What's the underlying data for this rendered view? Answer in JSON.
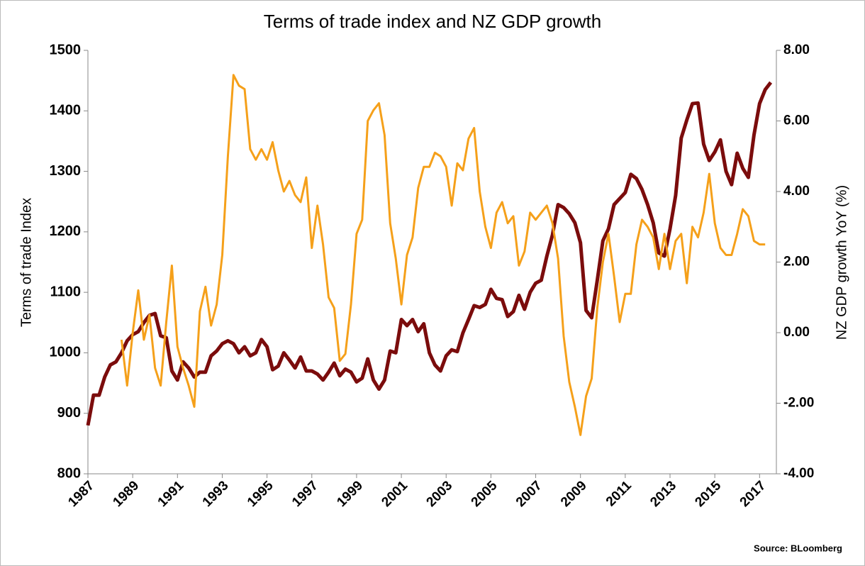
{
  "chart_data": {
    "type": "line",
    "title": "Terms of trade index and NZ GDP growth",
    "ylabel": "Terms of trade Index",
    "y2label": "NZ GDP growth YoY (%)",
    "source": "Source: BLoomberg",
    "xlim": [
      1987,
      2017.75
    ],
    "xticks": [
      1987,
      1989,
      1991,
      1993,
      1995,
      1997,
      1999,
      2001,
      2003,
      2005,
      2007,
      2009,
      2011,
      2013,
      2015,
      2017
    ],
    "ylim": [
      800,
      1500
    ],
    "yticks": [
      800,
      900,
      1000,
      1100,
      1200,
      1300,
      1400,
      1500
    ],
    "y2lim": [
      -4,
      8
    ],
    "y2ticks": [
      {
        "value": -4,
        "label": "-4.00"
      },
      {
        "value": -2,
        "label": "-2.00"
      },
      {
        "value": 0,
        "label": "0.00"
      },
      {
        "value": 2,
        "label": "2.00"
      },
      {
        "value": 4,
        "label": "4.00"
      },
      {
        "value": 6,
        "label": "6.00"
      },
      {
        "value": 8,
        "label": "8.00"
      }
    ],
    "x": [
      1987,
      1987.25,
      1987.5,
      1987.75,
      1988,
      1988.25,
      1988.5,
      1988.75,
      1989,
      1989.25,
      1989.5,
      1989.75,
      1990,
      1990.25,
      1990.5,
      1990.75,
      1991,
      1991.25,
      1991.5,
      1991.75,
      1992,
      1992.25,
      1992.5,
      1992.75,
      1993,
      1993.25,
      1993.5,
      1993.75,
      1994,
      1994.25,
      1994.5,
      1994.75,
      1995,
      1995.25,
      1995.5,
      1995.75,
      1996,
      1996.25,
      1996.5,
      1996.75,
      1997,
      1997.25,
      1997.5,
      1997.75,
      1998,
      1998.25,
      1998.5,
      1998.75,
      1999,
      1999.25,
      1999.5,
      1999.75,
      2000,
      2000.25,
      2000.5,
      2000.75,
      2001,
      2001.25,
      2001.5,
      2001.75,
      2002,
      2002.25,
      2002.5,
      2002.75,
      2003,
      2003.25,
      2003.5,
      2003.75,
      2004,
      2004.25,
      2004.5,
      2004.75,
      2005,
      2005.25,
      2005.5,
      2005.75,
      2006,
      2006.25,
      2006.5,
      2006.75,
      2007,
      2007.25,
      2007.5,
      2007.75,
      2008,
      2008.25,
      2008.5,
      2008.75,
      2009,
      2009.25,
      2009.5,
      2009.75,
      2010,
      2010.25,
      2010.5,
      2010.75,
      2011,
      2011.25,
      2011.5,
      2011.75,
      2012,
      2012.25,
      2012.5,
      2012.75,
      2013,
      2013.25,
      2013.5,
      2013.75,
      2014,
      2014.25,
      2014.5,
      2014.75,
      2015,
      2015.25,
      2015.5,
      2015.75,
      2016,
      2016.25,
      2016.5,
      2016.75,
      2017,
      2017.25,
      2017.5
    ],
    "series": [
      {
        "name": "Terms of trade index",
        "color": "#7b0c0c",
        "width": 5,
        "values": [
          880,
          930,
          930,
          960,
          980,
          985,
          1000,
          1020,
          1030,
          1035,
          1050,
          1062,
          1065,
          1028,
          1025,
          970,
          955,
          985,
          975,
          960,
          968,
          968,
          995,
          1003,
          1015,
          1020,
          1015,
          1000,
          1010,
          995,
          1000,
          1022,
          1010,
          972,
          978,
          1000,
          988,
          975,
          993,
          970,
          970,
          965,
          955,
          968,
          983,
          962,
          973,
          968,
          952,
          958,
          990,
          955,
          940,
          955,
          1003,
          1000,
          1055,
          1045,
          1055,
          1035,
          1048,
          1000,
          980,
          970,
          995,
          1005,
          1002,
          1033,
          1055,
          1078,
          1075,
          1080,
          1105,
          1090,
          1088,
          1060,
          1068,
          1095,
          1072,
          1100,
          1115,
          1120,
          1160,
          1195,
          1245,
          1240,
          1230,
          1215,
          1182,
          1070,
          1058,
          1120,
          1185,
          1205,
          1245,
          1255,
          1265,
          1295,
          1288,
          1270,
          1245,
          1215,
          1165,
          1160,
          1205,
          1260,
          1355,
          1385,
          1412,
          1413,
          1345,
          1318,
          1332,
          1352,
          1300,
          1278,
          1330,
          1305,
          1290,
          1360,
          1412,
          1435,
          1447
        ]
      },
      {
        "name": "NZ GDP growth YoY",
        "color": "#f5a01a",
        "width": 3,
        "axis": "y2",
        "values": [
          null,
          null,
          null,
          null,
          null,
          null,
          -0.2,
          -1.5,
          0.0,
          1.2,
          -0.2,
          0.5,
          -1.0,
          -1.5,
          0.3,
          1.9,
          -0.4,
          -1.0,
          -1.5,
          -2.1,
          0.6,
          1.3,
          0.2,
          0.8,
          2.2,
          5.0,
          7.3,
          7.0,
          6.9,
          5.2,
          4.9,
          5.2,
          4.9,
          5.4,
          4.6,
          4.0,
          4.3,
          3.9,
          3.7,
          4.4,
          2.4,
          3.6,
          2.5,
          1.0,
          0.7,
          -0.8,
          -0.6,
          0.8,
          2.8,
          3.2,
          6.0,
          6.3,
          6.5,
          5.6,
          3.1,
          2.1,
          0.8,
          2.2,
          2.7,
          4.1,
          4.7,
          4.7,
          5.1,
          5.0,
          4.7,
          3.6,
          4.8,
          4.6,
          5.5,
          5.8,
          4.0,
          3.0,
          2.4,
          3.4,
          3.7,
          3.1,
          3.3,
          1.9,
          2.3,
          3.4,
          3.2,
          3.4,
          3.6,
          3.1,
          2.1,
          -0.1,
          -1.4,
          -2.1,
          -2.9,
          -1.8,
          -1.3,
          0.7,
          2.0,
          2.8,
          1.6,
          0.3,
          1.1,
          1.1,
          2.5,
          3.2,
          3.0,
          2.7,
          1.8,
          2.8,
          1.8,
          2.6,
          2.8,
          1.4,
          3.0,
          2.7,
          3.4,
          4.5,
          3.1,
          2.4,
          2.2,
          2.2,
          2.8,
          3.5,
          3.3,
          2.6,
          2.5,
          2.5,
          null
        ]
      }
    ]
  }
}
